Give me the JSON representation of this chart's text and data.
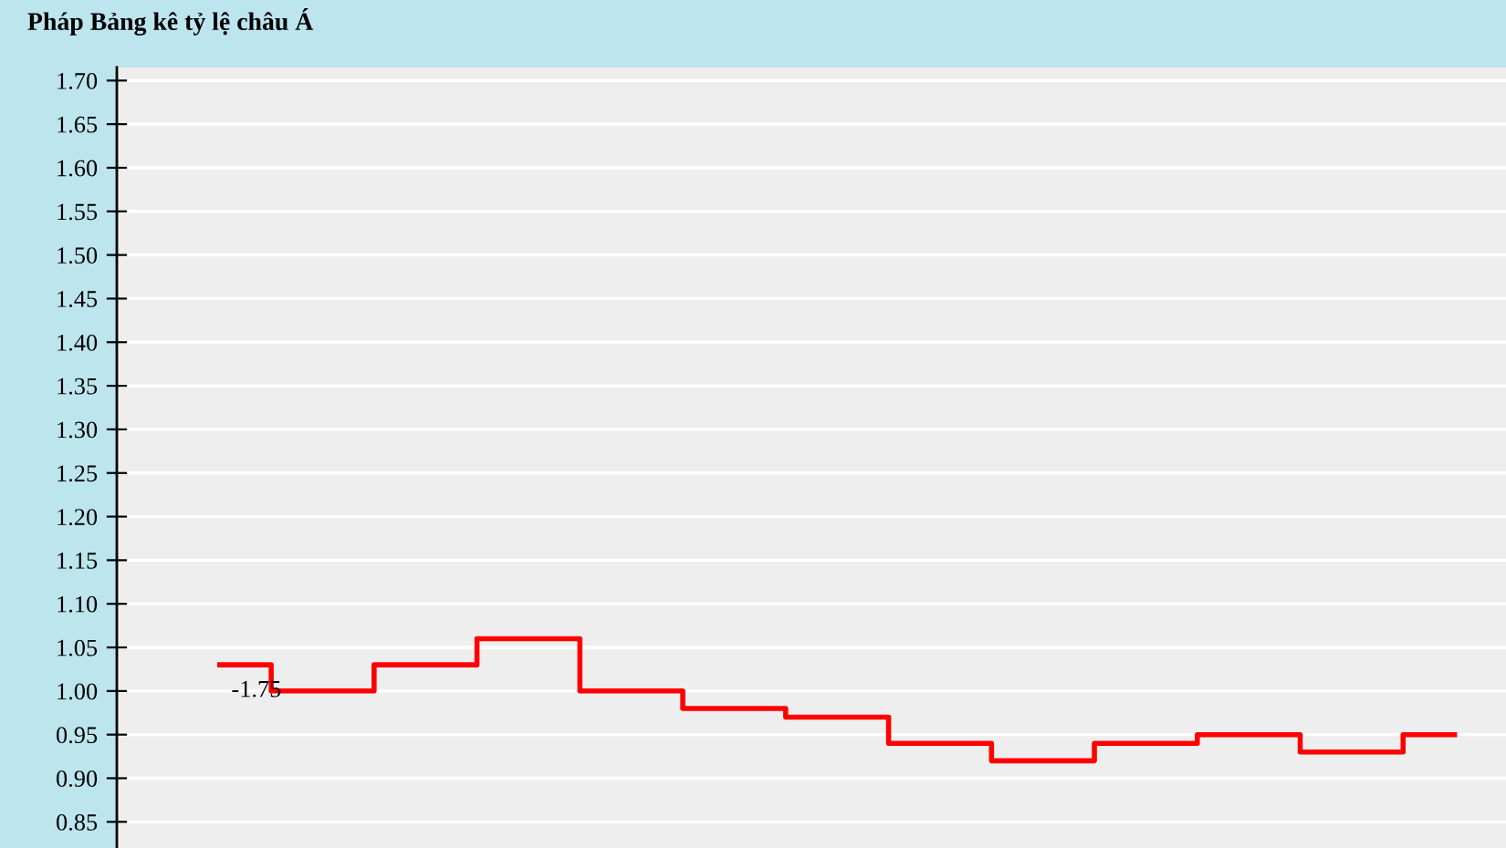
{
  "chart_data": {
    "type": "step",
    "title": "Pháp Bảng kê tỷ lệ châu Á",
    "categories": [
      null,
      null,
      null,
      null,
      null,
      null,
      null,
      null,
      null,
      null,
      null,
      null,
      null
    ],
    "series": [
      {
        "color": "#ff0000",
        "values": [
          1.03,
          1.0,
          1.03,
          1.06,
          1.0,
          0.98,
          0.97,
          0.94,
          0.92,
          0.94,
          0.95,
          0.93,
          0.95
        ]
      }
    ],
    "ylim": [
      0.82,
      1.715
    ],
    "yticks": [
      {
        "value": 1.7,
        "label": "1.70"
      },
      1.65,
      {
        "value": 1.6,
        "label": "1.60"
      },
      1.55,
      {
        "value": 1.5,
        "label": "1.50"
      },
      1.45,
      {
        "value": 1.4,
        "label": "1.40"
      },
      1.35,
      {
        "value": 1.3,
        "label": "1.30"
      },
      1.25,
      {
        "value": 1.2,
        "label": "1.20"
      },
      1.15,
      {
        "value": 1.1,
        "label": "1.10"
      },
      1.05,
      {
        "value": 1.0,
        "label": "1.00"
      },
      0.95,
      {
        "value": 0.9,
        "label": "0.90"
      },
      0.85
    ],
    "annotations": [
      "-1.75"
    ],
    "grid": "y",
    "tick_labels": "y"
  }
}
